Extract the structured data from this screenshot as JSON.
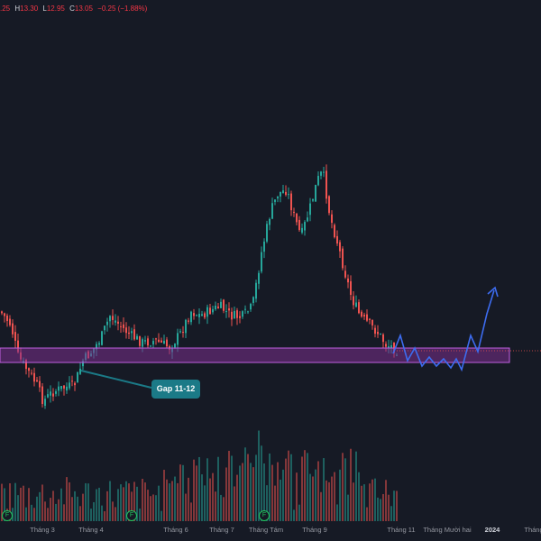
{
  "ohlc_bar": {
    "open_partial": ".25",
    "h_label": "H",
    "h_value": "13.30",
    "l_label": "L",
    "l_value": "12.95",
    "c_label": "C",
    "c_value": "13.05",
    "change": "−0.25 (−1.88%)"
  },
  "annotation": {
    "label": "Gap 11-12"
  },
  "x_axis": {
    "labels": [
      "Tháng 3",
      "Tháng 4",
      "Tháng 6",
      "Tháng 7",
      "Tháng Tám",
      "Tháng 9",
      "Tháng 11",
      "Tháng Mười hai",
      "2024",
      "Tháng"
    ]
  },
  "event_badges": [
    "F",
    "F",
    "F"
  ],
  "colors": {
    "background": "#161a25",
    "up": "#26a69a",
    "down": "#ef5350",
    "zone_fill": "#7b2f8e",
    "zone_border": "#c060e0",
    "projection": "#3d6cf0",
    "callout": "#1b7a87"
  },
  "chart_data": {
    "type": "candlestick",
    "title": "",
    "y_scale": "price",
    "support_zone": {
      "label": "",
      "from_axis": "Tháng 3",
      "to_axis": "2024"
    },
    "projection_path": "bounce from zone, zig-zag sideways, then rally upward (arrow)"
  }
}
